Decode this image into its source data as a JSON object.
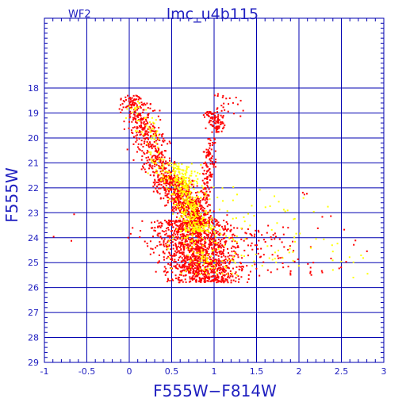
{
  "chart_data": {
    "type": "scatter",
    "title": "lmc_u4b115",
    "panel_label": "WF2",
    "xlabel": "F555W−F814W",
    "ylabel": "F555W",
    "xlim": [
      -1,
      3
    ],
    "ylim": [
      29,
      15.2
    ],
    "y_inverted": true,
    "grid": true,
    "x_ticks": [
      -1,
      -0.5,
      0,
      0.5,
      1,
      1.5,
      2,
      2.5,
      3
    ],
    "x_tick_labels": [
      "-1",
      "-0.5",
      "0",
      "0.5",
      "1",
      "1.5",
      "2",
      "2.5",
      "3"
    ],
    "y_ticks": [
      18,
      19,
      20,
      21,
      22,
      23,
      24,
      25,
      26,
      27,
      28,
      29
    ],
    "y_tick_labels": [
      "18",
      "19",
      "20",
      "21",
      "22",
      "23",
      "24",
      "25",
      "26",
      "27",
      "28",
      "29"
    ],
    "series": [
      {
        "color": "#ff0000",
        "components": [
          {
            "n": 420,
            "y_range": [
              18.3,
              21.5
            ],
            "x_at_ymin": 0.02,
            "x_at_ymax": 0.4,
            "x_sd": 0.09
          },
          {
            "n": 700,
            "y_range": [
              21.5,
              23.5
            ],
            "x_at_ymin": 0.45,
            "x_at_ymax": 0.85,
            "x_sd": 0.11
          },
          {
            "n": 1300,
            "y_range": [
              23.3,
              25.8
            ],
            "x_at_ymin": 0.65,
            "x_at_ymax": 0.95,
            "x_sd": 0.22
          },
          {
            "n": 130,
            "y_range": [
              20.0,
              22.6
            ],
            "x_at_ymin": 0.97,
            "x_at_ymax": 0.9,
            "x_sd": 0.035
          },
          {
            "n": 90,
            "y_range": [
              18.9,
              19.8
            ],
            "x_at_ymin": 0.98,
            "x_at_ymax": 1.05,
            "x_sd": 0.05
          },
          {
            "n": 25,
            "y_range": [
              18.2,
              19.2
            ],
            "x_at_ymin": 1.1,
            "x_at_ymax": 1.25,
            "x_sd": 0.1
          },
          {
            "n": 90,
            "y_range": [
              23.5,
              25.5
            ],
            "x_at_ymin": 1.4,
            "x_at_ymax": 1.8,
            "x_sd": 0.3
          },
          {
            "n": 14,
            "y_range": [
              22.0,
              25.5
            ],
            "x_at_ymin": 2.0,
            "x_at_ymax": 2.7,
            "x_sd": 0.3
          },
          {
            "n": 3,
            "y_range": [
              23.0,
              24.3
            ],
            "x_at_ymin": -0.7,
            "x_at_ymax": -0.7,
            "x_sd": 0.1
          }
        ]
      },
      {
        "color": "#ffff00",
        "components": [
          {
            "n": 75,
            "y_range": [
              18.5,
              21.5
            ],
            "x_at_ymin": 0.08,
            "x_at_ymax": 0.4,
            "x_sd": 0.07
          },
          {
            "n": 380,
            "y_range": [
              21.0,
              23.8
            ],
            "x_at_ymin": 0.55,
            "x_at_ymax": 0.8,
            "x_sd": 0.09
          },
          {
            "n": 120,
            "y_range": [
              23.5,
              25.5
            ],
            "x_at_ymin": 0.7,
            "x_at_ymax": 1.0,
            "x_sd": 0.2
          },
          {
            "n": 80,
            "y_range": [
              21.8,
              25.2
            ],
            "x_at_ymin": 1.2,
            "x_at_ymax": 1.8,
            "x_sd": 0.4
          },
          {
            "n": 12,
            "y_range": [
              22.8,
              25.8
            ],
            "x_at_ymin": 2.1,
            "x_at_ymax": 2.75,
            "x_sd": 0.25
          }
        ]
      }
    ]
  }
}
